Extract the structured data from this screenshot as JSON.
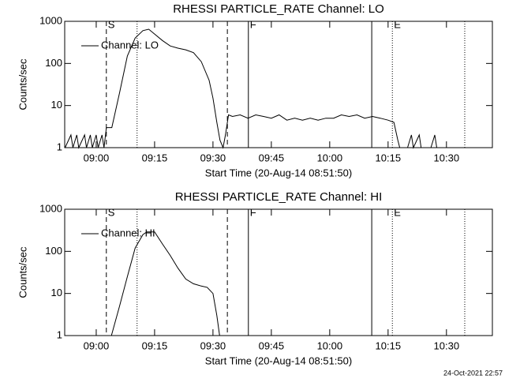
{
  "chart_data": [
    {
      "type": "line",
      "title": "RHESSI PARTICLE_RATE Channel: LO",
      "xlabel": "Start Time (20-Aug-14 08:51:50)",
      "ylabel": "Counts/sec",
      "log_scale": true,
      "ylim": [
        1,
        1000
      ],
      "yticks": [
        1,
        10,
        100,
        1000
      ],
      "xlim": [
        531.9,
        641.8
      ],
      "xticks": [
        {
          "value": 540,
          "label": "09:00"
        },
        {
          "value": 555,
          "label": "09:15"
        },
        {
          "value": 570,
          "label": "09:30"
        },
        {
          "value": 585,
          "label": "09:45"
        },
        {
          "value": 600,
          "label": "10:00"
        },
        {
          "value": 615,
          "label": "10:15"
        },
        {
          "value": 630,
          "label": "10:30"
        }
      ],
      "vlines": [
        {
          "x": 542.6,
          "style": "dashed"
        },
        {
          "x": 550.5,
          "style": "dotted"
        },
        {
          "x": 573.7,
          "style": "dashed"
        },
        {
          "x": 579.1,
          "style": "solid"
        },
        {
          "x": 610.8,
          "style": "solid"
        },
        {
          "x": 616.1,
          "style": "dotted"
        },
        {
          "x": 634.7,
          "style": "dotted"
        }
      ],
      "annotations": [
        {
          "text": "S",
          "x": 542.6
        },
        {
          "text": "F",
          "x": 579.1
        },
        {
          "text": "E",
          "x": 616.1
        }
      ],
      "series": [
        {
          "name": "Channel: LO",
          "color": "#000000",
          "x": [
            532,
            533.5,
            534,
            535,
            535.5,
            537,
            537.5,
            538.5,
            539,
            540,
            540.5,
            541.5,
            542,
            542.6,
            544,
            546,
            548,
            550,
            552,
            553.5,
            555,
            557,
            559,
            561,
            563,
            565,
            567,
            569,
            570,
            571,
            571.8,
            572.6,
            573.2,
            574,
            575,
            577,
            579,
            581,
            583,
            585,
            587,
            589,
            591,
            593,
            595,
            597,
            599,
            601,
            603,
            605,
            607,
            609,
            611,
            613,
            615,
            616.5,
            617.5,
            618,
            620,
            621,
            621.5,
            623,
            623.5,
            626,
            627,
            627.5,
            630
          ],
          "values": [
            1,
            2,
            1,
            2,
            1,
            2,
            1,
            2,
            1,
            2,
            1,
            2,
            1,
            3,
            3,
            20,
            150,
            400,
            600,
            650,
            500,
            350,
            260,
            230,
            210,
            180,
            110,
            40,
            15,
            4,
            1.5,
            1,
            2,
            6,
            5.5,
            6,
            5,
            6,
            5.5,
            5,
            6,
            4.5,
            5,
            4.5,
            5,
            4.5,
            5,
            5,
            6,
            5.5,
            6,
            5,
            5.5,
            5,
            4.5,
            4,
            1.5,
            1,
            1,
            2,
            1,
            2,
            1,
            1,
            2,
            1,
            1
          ]
        }
      ]
    },
    {
      "type": "line",
      "title": "RHESSI PARTICLE_RATE Channel: HI",
      "xlabel": "Start Time (20-Aug-14 08:51:50)",
      "ylabel": "Counts/sec",
      "log_scale": true,
      "ylim": [
        1,
        1000
      ],
      "yticks": [
        1,
        10,
        100,
        1000
      ],
      "xlim": [
        531.9,
        641.8
      ],
      "xticks": [
        {
          "value": 540,
          "label": "09:00"
        },
        {
          "value": 555,
          "label": "09:15"
        },
        {
          "value": 570,
          "label": "09:30"
        },
        {
          "value": 585,
          "label": "09:45"
        },
        {
          "value": 600,
          "label": "10:00"
        },
        {
          "value": 615,
          "label": "10:15"
        },
        {
          "value": 630,
          "label": "10:30"
        }
      ],
      "vlines": [
        {
          "x": 542.6,
          "style": "dashed"
        },
        {
          "x": 550.5,
          "style": "dotted"
        },
        {
          "x": 573.7,
          "style": "dashed"
        },
        {
          "x": 579.1,
          "style": "solid"
        },
        {
          "x": 610.8,
          "style": "solid"
        },
        {
          "x": 616.1,
          "style": "dotted"
        },
        {
          "x": 634.7,
          "style": "dotted"
        }
      ],
      "annotations": [
        {
          "text": "S",
          "x": 542.6
        },
        {
          "text": "F",
          "x": 579.1
        },
        {
          "text": "E",
          "x": 616.1
        }
      ],
      "series": [
        {
          "name": "Channel: HI",
          "color": "#000000",
          "x": [
            543.9,
            546,
            548,
            550,
            552,
            553,
            555,
            557,
            559,
            561,
            563,
            565,
            567,
            568.5,
            570,
            571,
            571.7
          ],
          "values": [
            1,
            5,
            25,
            120,
            250,
            290,
            290,
            150,
            80,
            40,
            22,
            17,
            15,
            14,
            10,
            3,
            1
          ]
        }
      ]
    }
  ],
  "footer": "24-Oct-2021 22:57"
}
